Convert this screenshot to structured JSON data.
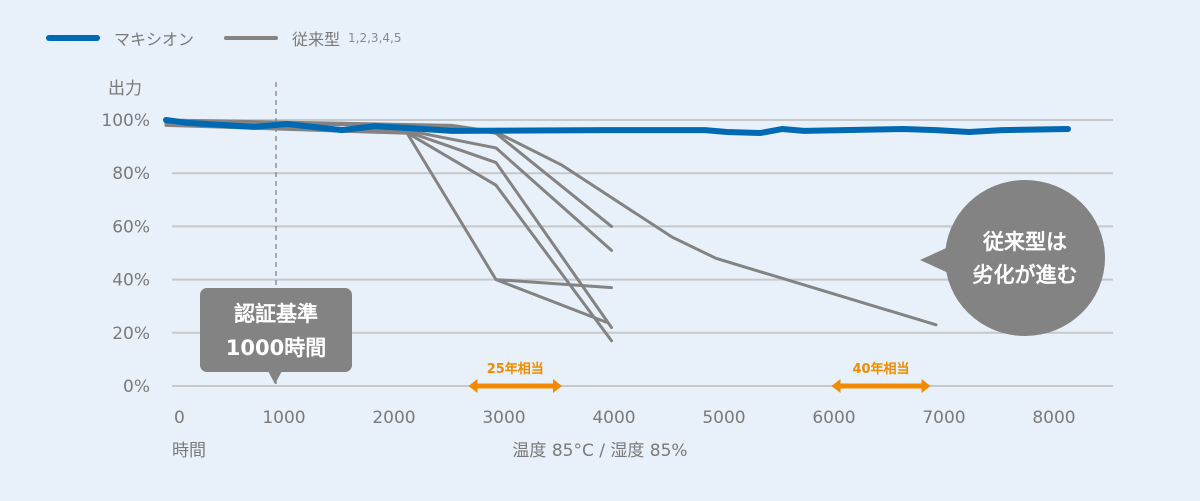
{
  "legend": {
    "maxion": "マキシオン",
    "conventional": "従来型",
    "conventional_note": "1,2,3,4,5"
  },
  "colors": {
    "maxion": "#0069b4",
    "conventional": "#838383",
    "accent": "#f28a00",
    "callout": "#838383"
  },
  "annotations": {
    "cert_line1": "認証基準",
    "cert_line2": "1000時間",
    "callout_line1": "従来型は",
    "callout_line2": "劣化が進む",
    "range25": "25年相当",
    "range40": "40年相当"
  },
  "chart_data": {
    "type": "line",
    "title": "",
    "xlabel": "時間",
    "xlabel_condition": "温度 85°C / 湿度 85%",
    "ylabel": "出力",
    "xlim": [
      0,
      8000
    ],
    "ylim": [
      0,
      100
    ],
    "grid": true,
    "legend_position": "top-left",
    "x_ticks": [
      "0",
      "1000",
      "2000",
      "3000",
      "4000",
      "5000",
      "6000",
      "7000",
      "8000"
    ],
    "y_ticks": [
      "0%",
      "20%",
      "40%",
      "60%",
      "80%",
      "100%"
    ],
    "reference_line_x": 1000,
    "ranges": [
      {
        "label": "25年相当",
        "from": 2750,
        "to": 3600
      },
      {
        "label": "40年相当",
        "from": 6050,
        "to": 6950
      }
    ],
    "series": [
      {
        "name": "マキシオン",
        "kind": "maxion",
        "points": [
          [
            0,
            100
          ],
          [
            200,
            98.9
          ],
          [
            800,
            97.4
          ],
          [
            1100,
            98.5
          ],
          [
            1600,
            96.2
          ],
          [
            1900,
            97.7
          ],
          [
            2200,
            97
          ],
          [
            2600,
            95.9
          ],
          [
            4000,
            96.2
          ],
          [
            4900,
            96.2
          ],
          [
            5100,
            95.5
          ],
          [
            5400,
            95.1
          ],
          [
            5600,
            96.6
          ],
          [
            5800,
            95.9
          ],
          [
            6700,
            96.6
          ],
          [
            7000,
            96.2
          ],
          [
            7300,
            95.5
          ],
          [
            7600,
            96.2
          ],
          [
            8200,
            96.6
          ]
        ]
      },
      {
        "name": "従来型",
        "kind": "conventional",
        "points": [
          [
            0,
            100
          ],
          [
            2600,
            98
          ],
          [
            3000,
            95.5
          ],
          [
            3600,
            83
          ],
          [
            4600,
            56
          ],
          [
            5000,
            48
          ],
          [
            7000,
            23
          ]
        ]
      },
      {
        "name": "従来型",
        "kind": "conventional",
        "points": [
          [
            0,
            99.5
          ],
          [
            2600,
            97.5
          ],
          [
            3000,
            95
          ],
          [
            4050,
            60
          ]
        ]
      },
      {
        "name": "従来型",
        "kind": "conventional",
        "points": [
          [
            0,
            99
          ],
          [
            2200,
            96
          ],
          [
            3000,
            89.5
          ],
          [
            4050,
            51
          ]
        ]
      },
      {
        "name": "従来型",
        "kind": "conventional",
        "points": [
          [
            0,
            98.5
          ],
          [
            2200,
            95.5
          ],
          [
            3000,
            84
          ],
          [
            4050,
            22
          ]
        ]
      },
      {
        "name": "従来型",
        "kind": "conventional",
        "points": [
          [
            0,
            98
          ],
          [
            2200,
            95
          ],
          [
            3000,
            75.5
          ],
          [
            4050,
            17
          ]
        ]
      },
      {
        "name": "従来型",
        "kind": "conventional",
        "points": [
          [
            2200,
            94.5
          ],
          [
            3000,
            40
          ],
          [
            4050,
            37
          ],
          [
            3000,
            40
          ],
          [
            4000,
            24
          ]
        ]
      }
    ]
  }
}
